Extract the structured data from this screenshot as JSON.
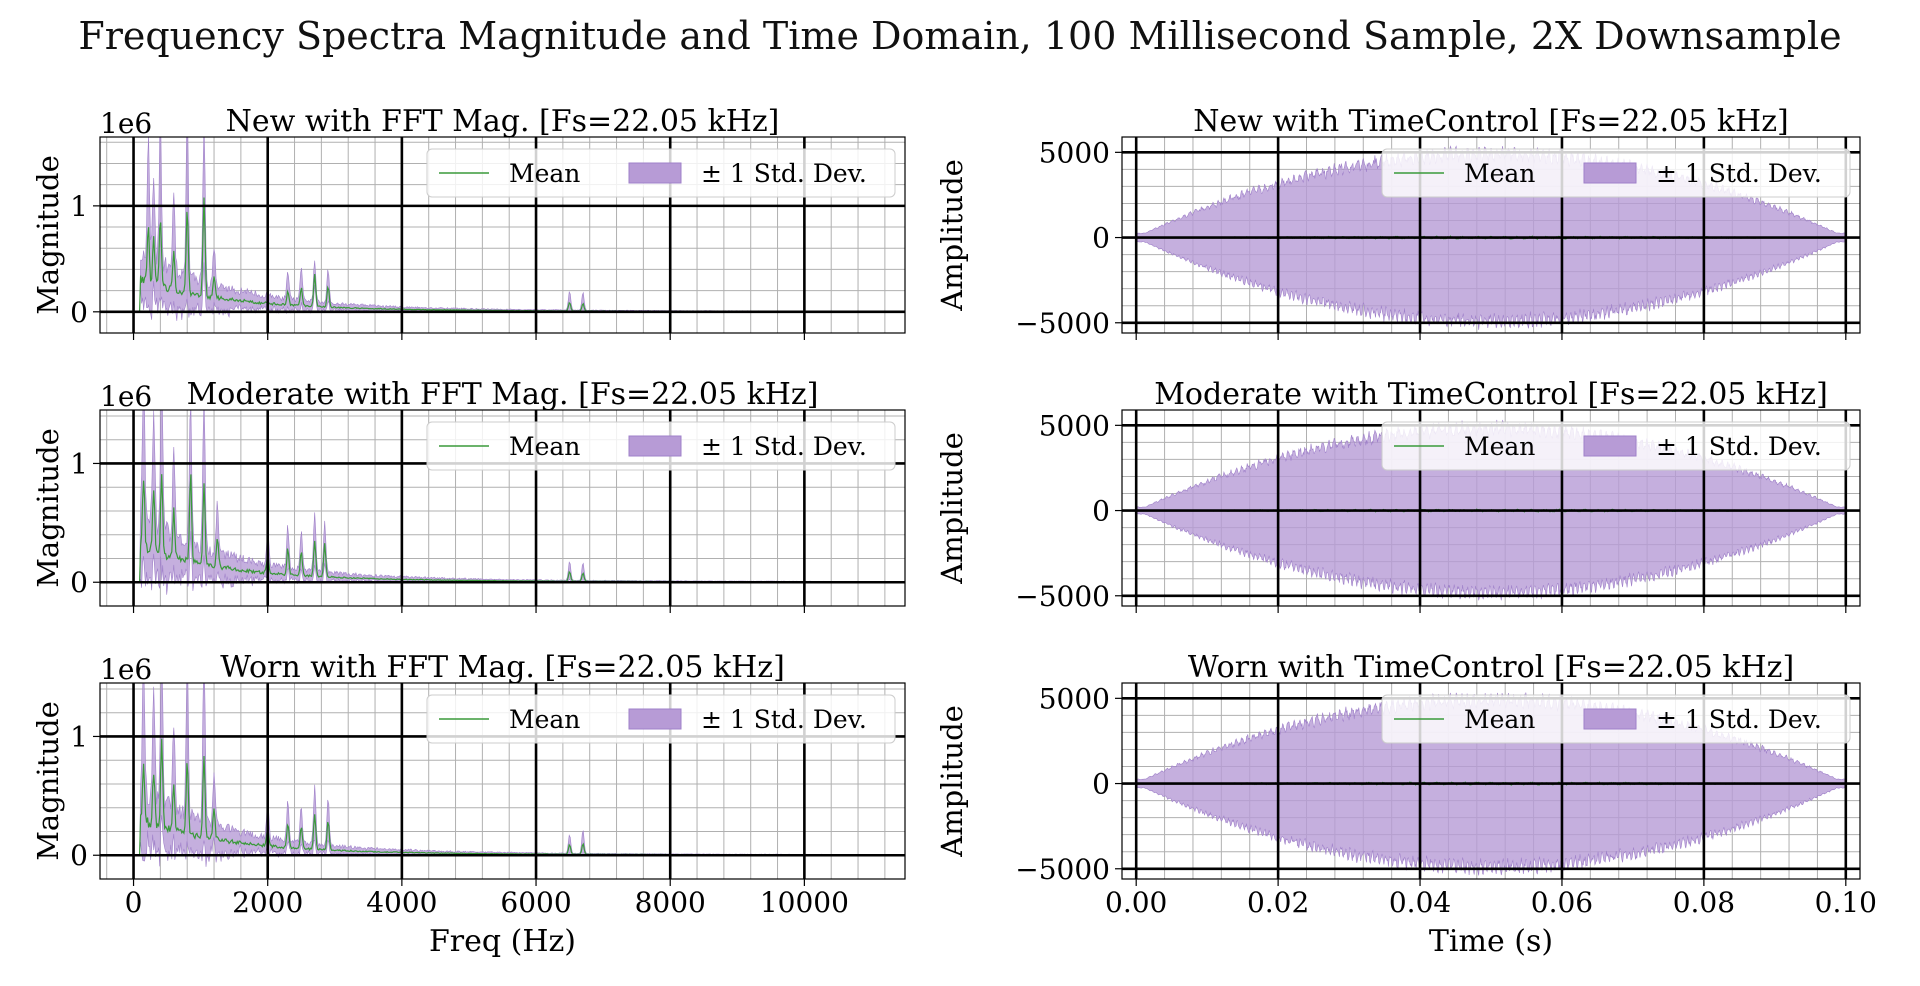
{
  "figure": {
    "suptitle": "Frequency Spectra Magnitude and Time Domain, 100 Millisecond Sample, 2X Downsample"
  },
  "colors": {
    "mean_line": "#3a9a3a",
    "std_fill": "#b79bd6",
    "std_fill_edge": "#9f80c9",
    "grid_minor": "#b0b0b0",
    "grid_major": "#000000"
  },
  "legend": {
    "mean_label": "Mean",
    "std_label": "± 1 Std. Dev.",
    "placement": "upper-right"
  },
  "chart_data": [
    {
      "id": "fft-new",
      "type": "area",
      "column": "left",
      "row": 0,
      "title": "New with FFT Mag. [Fs=22.05 kHz]",
      "xlabel": "",
      "ylabel": "Magnitude",
      "y_offset_text": "1e6",
      "xlim": [
        -500,
        11500
      ],
      "ylim": [
        -0.2,
        1.65
      ],
      "xticks": [
        0,
        2000,
        4000,
        6000,
        8000,
        10000
      ],
      "xtick_labels": [
        "0",
        "2000",
        "4000",
        "6000",
        "8000",
        "10000"
      ],
      "yticks": [
        0,
        1
      ],
      "ytick_labels": [
        "0",
        "1"
      ],
      "show_xtick_labels": false,
      "mean_peaks": [
        [
          220,
          0.55
        ],
        [
          300,
          0.45
        ],
        [
          400,
          0.65
        ],
        [
          600,
          0.35
        ],
        [
          800,
          0.8
        ],
        [
          1050,
          0.95
        ],
        [
          1200,
          0.2
        ],
        [
          2300,
          0.13
        ],
        [
          2500,
          0.17
        ],
        [
          2700,
          0.3
        ],
        [
          2900,
          0.2
        ],
        [
          6500,
          0.08
        ],
        [
          6700,
          0.07
        ]
      ],
      "upper_peaks": [
        [
          220,
          1.15
        ],
        [
          300,
          0.85
        ],
        [
          400,
          1.4
        ],
        [
          600,
          0.7
        ],
        [
          800,
          1.6
        ],
        [
          1050,
          1.55
        ],
        [
          1200,
          0.35
        ],
        [
          2300,
          0.25
        ],
        [
          2500,
          0.3
        ],
        [
          2700,
          0.4
        ],
        [
          2900,
          0.33
        ],
        [
          6500,
          0.18
        ],
        [
          6700,
          0.17
        ]
      ],
      "series": [
        {
          "name": "Mean",
          "style": "line"
        },
        {
          "name": "± 1 Std. Dev.",
          "style": "band"
        }
      ]
    },
    {
      "id": "time-new",
      "type": "area",
      "column": "right",
      "row": 0,
      "title": "New with TimeControl [Fs=22.05 kHz]",
      "xlabel": "",
      "ylabel": "Amplitude",
      "xlim": [
        -0.002,
        0.102
      ],
      "ylim": [
        -5600,
        5900
      ],
      "xticks": [
        0.0,
        0.02,
        0.04,
        0.06,
        0.08,
        0.1
      ],
      "xtick_labels": [
        "0.00",
        "0.02",
        "0.04",
        "0.06",
        "0.08",
        "0.10"
      ],
      "yticks": [
        -5000,
        0,
        5000
      ],
      "ytick_labels": [
        "−5000",
        "0",
        "5000"
      ],
      "show_xtick_labels": false,
      "envelope_peak": 4900,
      "envelope_edge": 250,
      "envelope_center": 0.05,
      "series": [
        {
          "name": "Mean",
          "style": "line"
        },
        {
          "name": "± 1 Std. Dev.",
          "style": "band"
        }
      ]
    },
    {
      "id": "fft-moderate",
      "type": "area",
      "column": "left",
      "row": 1,
      "title": "Moderate with FFT Mag. [Fs=22.05 kHz]",
      "xlabel": "",
      "ylabel": "Magnitude",
      "y_offset_text": "1e6",
      "xlim": [
        -500,
        11500
      ],
      "ylim": [
        -0.2,
        1.45
      ],
      "xticks": [
        0,
        2000,
        4000,
        6000,
        8000,
        10000
      ],
      "xtick_labels": [
        "0",
        "2000",
        "4000",
        "6000",
        "8000",
        "10000"
      ],
      "yticks": [
        0,
        1
      ],
      "ytick_labels": [
        "0",
        "1"
      ],
      "show_xtick_labels": false,
      "mean_peaks": [
        [
          150,
          0.6
        ],
        [
          300,
          0.55
        ],
        [
          420,
          0.7
        ],
        [
          600,
          0.4
        ],
        [
          850,
          0.75
        ],
        [
          1050,
          0.7
        ],
        [
          1250,
          0.25
        ],
        [
          2000,
          0.15
        ],
        [
          2300,
          0.22
        ],
        [
          2500,
          0.2
        ],
        [
          2700,
          0.3
        ],
        [
          2850,
          0.28
        ],
        [
          6500,
          0.08
        ],
        [
          6700,
          0.07
        ]
      ],
      "upper_peaks": [
        [
          150,
          1.15
        ],
        [
          300,
          1.0
        ],
        [
          420,
          1.35
        ],
        [
          600,
          0.75
        ],
        [
          850,
          1.2
        ],
        [
          1050,
          1.3
        ],
        [
          1250,
          0.45
        ],
        [
          2000,
          0.3
        ],
        [
          2300,
          0.35
        ],
        [
          2500,
          0.32
        ],
        [
          2700,
          0.5
        ],
        [
          2850,
          0.42
        ],
        [
          6500,
          0.16
        ],
        [
          6700,
          0.15
        ]
      ],
      "series": [
        {
          "name": "Mean",
          "style": "line"
        },
        {
          "name": "± 1 Std. Dev.",
          "style": "band"
        }
      ]
    },
    {
      "id": "time-moderate",
      "type": "area",
      "column": "right",
      "row": 1,
      "title": "Moderate with TimeControl [Fs=22.05 kHz]",
      "xlabel": "",
      "ylabel": "Amplitude",
      "xlim": [
        -0.002,
        0.102
      ],
      "ylim": [
        -5600,
        5900
      ],
      "xticks": [
        0.0,
        0.02,
        0.04,
        0.06,
        0.08,
        0.1
      ],
      "xtick_labels": [
        "0.00",
        "0.02",
        "0.04",
        "0.06",
        "0.08",
        "0.10"
      ],
      "yticks": [
        -5000,
        0,
        5000
      ],
      "ytick_labels": [
        "−5000",
        "0",
        "5000"
      ],
      "show_xtick_labels": false,
      "envelope_peak": 4800,
      "envelope_edge": 200,
      "envelope_center": 0.05,
      "series": [
        {
          "name": "Mean",
          "style": "line"
        },
        {
          "name": "± 1 Std. Dev.",
          "style": "band"
        }
      ]
    },
    {
      "id": "fft-worn",
      "type": "area",
      "column": "left",
      "row": 2,
      "title": "Worn with FFT Mag. [Fs=22.05 kHz]",
      "xlabel": "Freq (Hz)",
      "ylabel": "Magnitude",
      "y_offset_text": "1e6",
      "xlim": [
        -500,
        11500
      ],
      "ylim": [
        -0.2,
        1.45
      ],
      "xticks": [
        0,
        2000,
        4000,
        6000,
        8000,
        10000
      ],
      "xtick_labels": [
        "0",
        "2000",
        "4000",
        "6000",
        "8000",
        "10000"
      ],
      "yticks": [
        0,
        1
      ],
      "ytick_labels": [
        "0",
        "1"
      ],
      "show_xtick_labels": true,
      "mean_peaks": [
        [
          150,
          0.5
        ],
        [
          300,
          0.45
        ],
        [
          420,
          0.75
        ],
        [
          600,
          0.4
        ],
        [
          800,
          0.65
        ],
        [
          1050,
          0.7
        ],
        [
          1200,
          0.25
        ],
        [
          2000,
          0.15
        ],
        [
          2300,
          0.2
        ],
        [
          2500,
          0.18
        ],
        [
          2700,
          0.3
        ],
        [
          2900,
          0.25
        ],
        [
          6500,
          0.08
        ],
        [
          6700,
          0.09
        ]
      ],
      "upper_peaks": [
        [
          150,
          1.1
        ],
        [
          300,
          1.0
        ],
        [
          420,
          1.35
        ],
        [
          600,
          0.75
        ],
        [
          800,
          1.3
        ],
        [
          1050,
          1.4
        ],
        [
          1200,
          0.4
        ],
        [
          2000,
          0.3
        ],
        [
          2300,
          0.33
        ],
        [
          2500,
          0.3
        ],
        [
          2700,
          0.48
        ],
        [
          2900,
          0.4
        ],
        [
          6500,
          0.16
        ],
        [
          6700,
          0.2
        ]
      ],
      "series": [
        {
          "name": "Mean",
          "style": "line"
        },
        {
          "name": "± 1 Std. Dev.",
          "style": "band"
        }
      ]
    },
    {
      "id": "time-worn",
      "type": "area",
      "column": "right",
      "row": 2,
      "title": "Worn with TimeControl [Fs=22.05 kHz]",
      "xlabel": "Time (s)",
      "ylabel": "Amplitude",
      "xlim": [
        -0.002,
        0.102
      ],
      "ylim": [
        -5600,
        5900
      ],
      "xticks": [
        0.0,
        0.02,
        0.04,
        0.06,
        0.08,
        0.1
      ],
      "xtick_labels": [
        "0.00",
        "0.02",
        "0.04",
        "0.06",
        "0.08",
        "0.10"
      ],
      "yticks": [
        -5000,
        0,
        5000
      ],
      "ytick_labels": [
        "−5000",
        "0",
        "5000"
      ],
      "show_xtick_labels": true,
      "envelope_peak": 4900,
      "envelope_edge": 250,
      "envelope_center": 0.05,
      "series": [
        {
          "name": "Mean",
          "style": "line"
        },
        {
          "name": "± 1 Std. Dev.",
          "style": "band"
        }
      ]
    }
  ]
}
